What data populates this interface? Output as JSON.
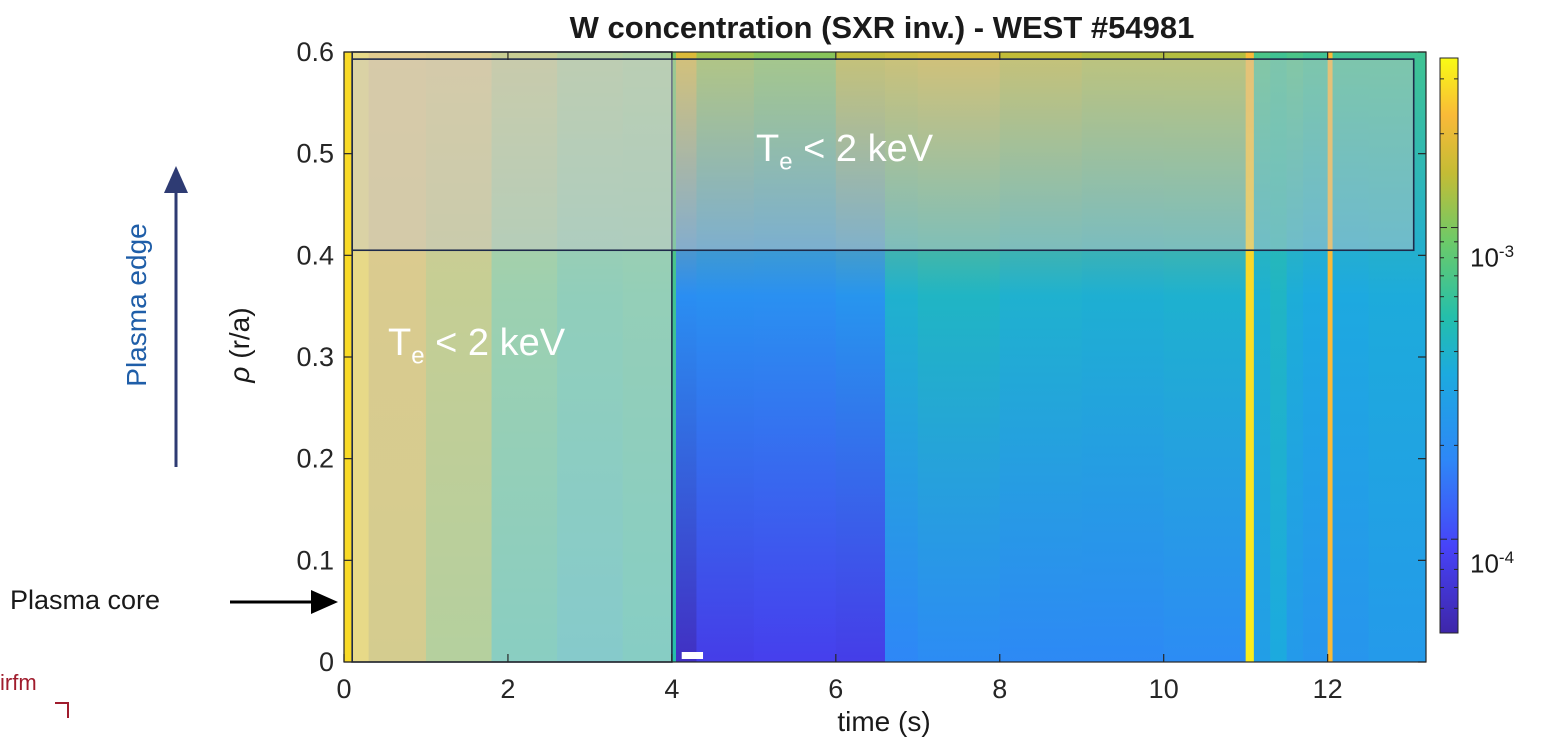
{
  "title": "W concentration (SXR inv.) - WEST #54981",
  "chart_data": {
    "type": "heatmap",
    "title": "W concentration (SXR inv.) - WEST #54981",
    "xlabel": "time (s)",
    "ylabel_symbol": "ρ",
    "ylabel_text": "(r/a)",
    "xlim": [
      0,
      13.2
    ],
    "ylim": [
      0,
      0.6
    ],
    "xticks": [
      0,
      2,
      4,
      6,
      8,
      10,
      12
    ],
    "yticks": [
      0,
      0.1,
      0.2,
      0.3,
      0.4,
      0.5,
      0.6
    ],
    "colorbar": {
      "scale": "log",
      "range": [
        5e-05,
        0.0035
      ],
      "labels": [
        {
          "base": "10",
          "exp": "-3",
          "value": 0.001
        },
        {
          "base": "10",
          "exp": "-4",
          "value": 0.0001
        }
      ],
      "colormap": [
        "#3e26a8",
        "#4743f8",
        "#2e87f7",
        "#1caadf",
        "#24bfab",
        "#6cca69",
        "#c4bc35",
        "#f9ba38",
        "#f9fb15"
      ]
    },
    "colormap_stops": [
      {
        "t": 0.0,
        "color": "#3e26a8"
      },
      {
        "t": 0.15,
        "color": "#4743f8"
      },
      {
        "t": 0.3,
        "color": "#2e87f7"
      },
      {
        "t": 0.45,
        "color": "#1caadf"
      },
      {
        "t": 0.55,
        "color": "#24bfab"
      },
      {
        "t": 0.68,
        "color": "#6cca69"
      },
      {
        "t": 0.8,
        "color": "#c4bc35"
      },
      {
        "t": 0.9,
        "color": "#f9ba38"
      },
      {
        "t": 1.0,
        "color": "#f9fb15"
      }
    ],
    "time_bands": [
      {
        "x": [
          0.0,
          0.3
        ],
        "core": 0.95,
        "edge": 0.95
      },
      {
        "x": [
          0.3,
          1.0
        ],
        "core": 0.82,
        "edge": 0.88
      },
      {
        "x": [
          1.0,
          1.8
        ],
        "core": 0.72,
        "edge": 0.86
      },
      {
        "x": [
          1.8,
          2.6
        ],
        "core": 0.56,
        "edge": 0.78
      },
      {
        "x": [
          2.6,
          3.4
        ],
        "core": 0.52,
        "edge": 0.72
      },
      {
        "x": [
          3.4,
          4.05
        ],
        "core": 0.55,
        "edge": 0.7
      },
      {
        "x": [
          4.05,
          4.3
        ],
        "core": 0.05,
        "edge": 0.85
      },
      {
        "x": [
          4.3,
          5.0
        ],
        "core": 0.12,
        "edge": 0.75
      },
      {
        "x": [
          5.0,
          6.0
        ],
        "core": 0.13,
        "edge": 0.72
      },
      {
        "x": [
          6.0,
          6.6
        ],
        "core": 0.12,
        "edge": 0.8
      },
      {
        "x": [
          6.6,
          7.0
        ],
        "core": 0.3,
        "edge": 0.82
      },
      {
        "x": [
          7.0,
          8.0
        ],
        "core": 0.32,
        "edge": 0.84
      },
      {
        "x": [
          8.0,
          9.0
        ],
        "core": 0.31,
        "edge": 0.8
      },
      {
        "x": [
          9.0,
          10.0
        ],
        "core": 0.31,
        "edge": 0.78
      },
      {
        "x": [
          10.0,
          11.0
        ],
        "core": 0.32,
        "edge": 0.78
      },
      {
        "x": [
          11.0,
          11.1
        ],
        "core": 0.98,
        "edge": 0.9
      },
      {
        "x": [
          11.1,
          11.3
        ],
        "core": 0.4,
        "edge": 0.62
      },
      {
        "x": [
          11.3,
          11.5
        ],
        "core": 0.45,
        "edge": 0.6
      },
      {
        "x": [
          11.5,
          11.7
        ],
        "core": 0.38,
        "edge": 0.62
      },
      {
        "x": [
          11.7,
          12.0
        ],
        "core": 0.36,
        "edge": 0.6
      },
      {
        "x": [
          12.0,
          12.06
        ],
        "core": 0.9,
        "edge": 0.9
      },
      {
        "x": [
          12.06,
          12.5
        ],
        "core": 0.36,
        "edge": 0.6
      },
      {
        "x": [
          12.5,
          13.2
        ],
        "core": 0.38,
        "edge": 0.6
      }
    ],
    "overlay_boxes": [
      {
        "x": [
          0.1,
          4.0
        ],
        "y": [
          0.0,
          0.6
        ],
        "fill": "#d8d8d8",
        "opacity": 0.55
      },
      {
        "x": [
          0.1,
          13.05
        ],
        "y": [
          0.405,
          0.593
        ],
        "fill": "#c9c9c9",
        "opacity": 0.45
      }
    ]
  },
  "annotations": {
    "te_label_1": {
      "main": "T",
      "sub": "e",
      "rest": " < 2 keV"
    },
    "te_label_2": {
      "main": "T",
      "sub": "e",
      "rest": " < 2 keV"
    },
    "plasma_edge": "Plasma edge",
    "plasma_core": "Plasma core",
    "logo": "irfm"
  },
  "colors": {
    "edge_arrow": "#2e3b73",
    "core_arrow": "#000000",
    "box_border": "#1e2a4a"
  }
}
